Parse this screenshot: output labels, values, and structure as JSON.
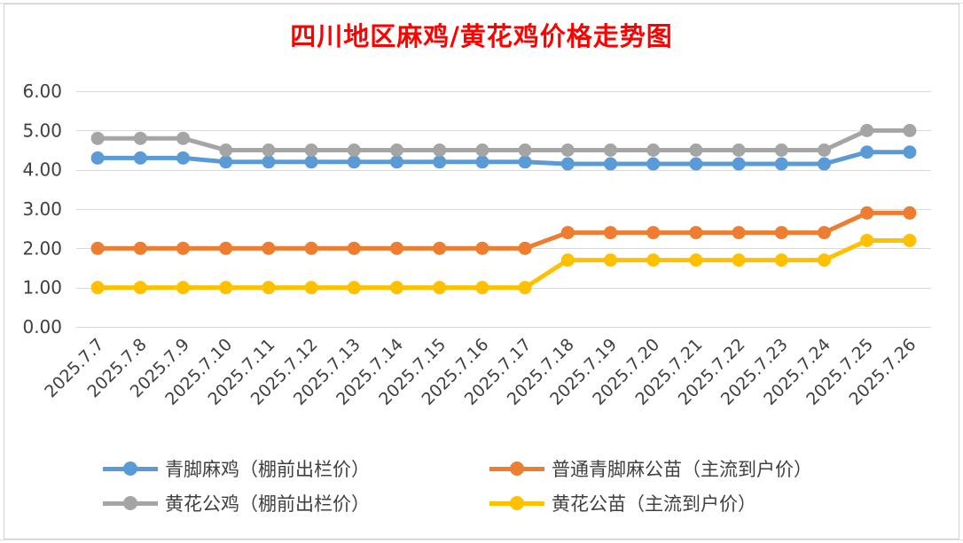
{
  "chart_data": {
    "type": "line",
    "title": "四川地区麻鸡/黄花鸡价格走势图",
    "xlabel": "",
    "ylabel": "",
    "ylim": [
      0,
      6
    ],
    "yticks": [
      "0.00",
      "1.00",
      "2.00",
      "3.00",
      "4.00",
      "5.00",
      "6.00"
    ],
    "grid": true,
    "legend_position": "bottom",
    "categories": [
      "2025.7.7",
      "2025.7.8",
      "2025.7.9",
      "2025.7.10",
      "2025.7.11",
      "2025.7.12",
      "2025.7.13",
      "2025.7.14",
      "2025.7.15",
      "2025.7.16",
      "2025.7.17",
      "2025.7.18",
      "2025.7.19",
      "2025.7.20",
      "2025.7.21",
      "2025.7.22",
      "2025.7.23",
      "2025.7.24",
      "2025.7.25",
      "2025.7.26"
    ],
    "series": [
      {
        "name": "青脚麻鸡（棚前出栏价）",
        "color": "#5b9bd5",
        "values": [
          4.3,
          4.3,
          4.3,
          4.2,
          4.2,
          4.2,
          4.2,
          4.2,
          4.2,
          4.2,
          4.2,
          4.15,
          4.15,
          4.15,
          4.15,
          4.15,
          4.15,
          4.15,
          4.45,
          4.45
        ]
      },
      {
        "name": "普通青脚麻公苗（主流到户价）",
        "color": "#ed7d31",
        "values": [
          2.0,
          2.0,
          2.0,
          2.0,
          2.0,
          2.0,
          2.0,
          2.0,
          2.0,
          2.0,
          2.0,
          2.4,
          2.4,
          2.4,
          2.4,
          2.4,
          2.4,
          2.4,
          2.9,
          2.9
        ]
      },
      {
        "name": "黄花公鸡（棚前出栏价）",
        "color": "#a5a5a5",
        "values": [
          4.8,
          4.8,
          4.8,
          4.5,
          4.5,
          4.5,
          4.5,
          4.5,
          4.5,
          4.5,
          4.5,
          4.5,
          4.5,
          4.5,
          4.5,
          4.5,
          4.5,
          4.5,
          5.0,
          5.0
        ]
      },
      {
        "name": "黄花公苗（主流到户价）",
        "color": "#ffc000",
        "values": [
          1.0,
          1.0,
          1.0,
          1.0,
          1.0,
          1.0,
          1.0,
          1.0,
          1.0,
          1.0,
          1.0,
          1.7,
          1.7,
          1.7,
          1.7,
          1.7,
          1.7,
          1.7,
          2.2,
          2.2
        ]
      }
    ]
  }
}
